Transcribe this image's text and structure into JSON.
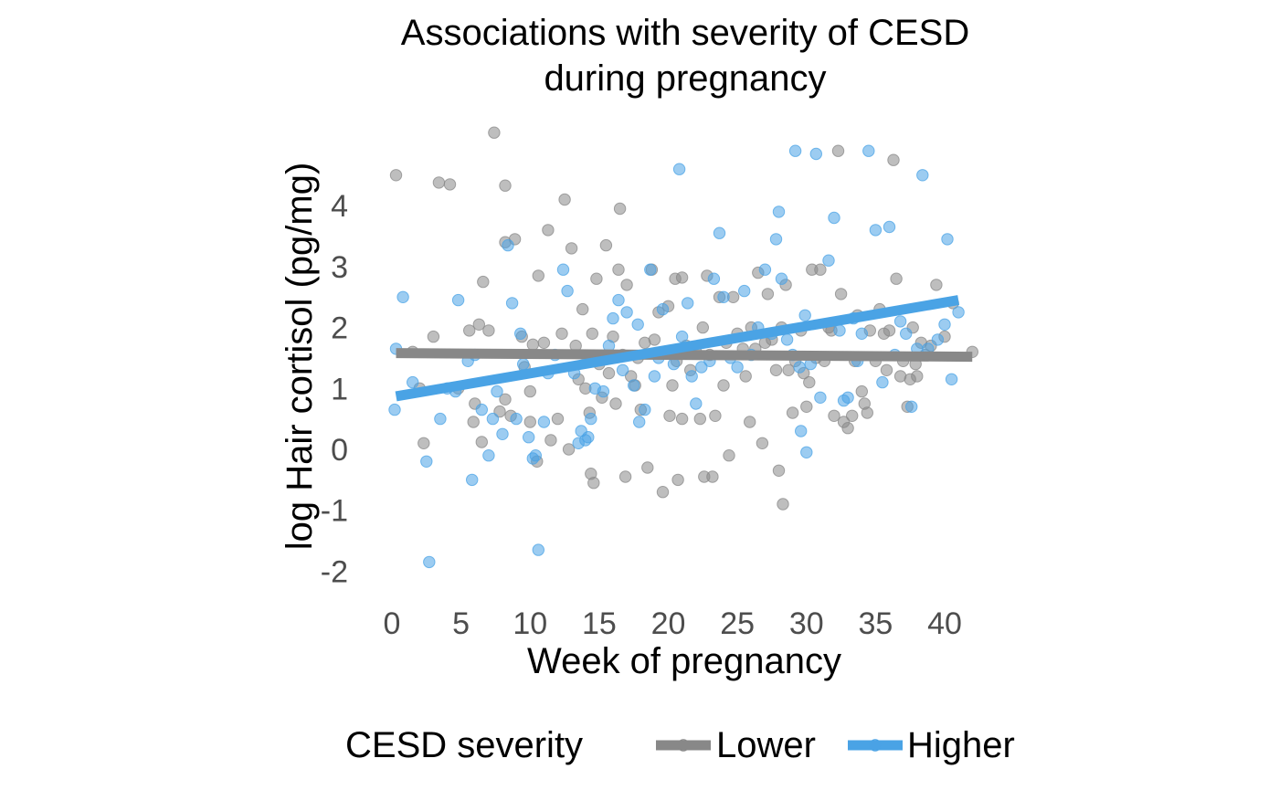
{
  "chart_data": {
    "type": "scatter",
    "title_lines": [
      "Associations with severity of CESD",
      "during pregnancy"
    ],
    "xlabel": "Week of pregnancy",
    "ylabel": "log Hair cortisol (pg/mg)",
    "xlim": [
      -0.5,
      42.5
    ],
    "ylim": [
      -2.3,
      5.3
    ],
    "x_ticks": [
      0,
      5,
      10,
      15,
      20,
      25,
      30,
      35,
      40
    ],
    "y_ticks": [
      -2,
      -1,
      0,
      1,
      2,
      3,
      4
    ],
    "grid": false,
    "legend": {
      "title": "CESD severity",
      "position": "bottom",
      "entries": [
        "Lower",
        "Higher"
      ]
    },
    "series": [
      {
        "name": "Lower",
        "color": "#888888",
        "trend": {
          "x": [
            0.3,
            42
          ],
          "y": [
            1.58,
            1.52
          ]
        },
        "points": [
          [
            0.3,
            4.5
          ],
          [
            1.5,
            1.6
          ],
          [
            2.0,
            1.0
          ],
          [
            2.3,
            0.1
          ],
          [
            3.0,
            1.85
          ],
          [
            3.4,
            4.38
          ],
          [
            4.2,
            4.35
          ],
          [
            4.8,
            1.0
          ],
          [
            5.6,
            1.95
          ],
          [
            5.9,
            0.45
          ],
          [
            6.0,
            0.75
          ],
          [
            6.3,
            2.05
          ],
          [
            6.5,
            0.12
          ],
          [
            6.6,
            2.75
          ],
          [
            7.0,
            1.95
          ],
          [
            7.4,
            5.2
          ],
          [
            7.8,
            0.62
          ],
          [
            8.2,
            4.33
          ],
          [
            8.2,
            3.4
          ],
          [
            8.2,
            0.82
          ],
          [
            8.6,
            0.55
          ],
          [
            8.9,
            3.45
          ],
          [
            9.4,
            1.85
          ],
          [
            9.6,
            1.35
          ],
          [
            10.0,
            0.95
          ],
          [
            10.0,
            0.45
          ],
          [
            10.2,
            1.72
          ],
          [
            10.6,
            2.85
          ],
          [
            10.5,
            -0.2
          ],
          [
            11.0,
            1.75
          ],
          [
            11.3,
            3.6
          ],
          [
            11.5,
            0.15
          ],
          [
            12.0,
            0.5
          ],
          [
            12.3,
            1.9
          ],
          [
            12.5,
            4.1
          ],
          [
            12.8,
            0.0
          ],
          [
            13.0,
            3.3
          ],
          [
            13.3,
            1.7
          ],
          [
            13.5,
            1.15
          ],
          [
            13.8,
            2.3
          ],
          [
            14.0,
            1.0
          ],
          [
            14.3,
            0.6
          ],
          [
            14.4,
            -0.4
          ],
          [
            14.5,
            1.9
          ],
          [
            14.6,
            -0.55
          ],
          [
            14.8,
            2.8
          ],
          [
            15.0,
            1.4
          ],
          [
            15.2,
            0.85
          ],
          [
            15.5,
            3.35
          ],
          [
            15.7,
            1.25
          ],
          [
            16.0,
            1.85
          ],
          [
            16.2,
            0.75
          ],
          [
            16.4,
            2.95
          ],
          [
            16.5,
            3.95
          ],
          [
            16.7,
            1.55
          ],
          [
            16.9,
            -0.45
          ],
          [
            17.0,
            2.7
          ],
          [
            17.3,
            1.2
          ],
          [
            17.6,
            1.05
          ],
          [
            17.8,
            1.5
          ],
          [
            18.0,
            0.65
          ],
          [
            18.3,
            1.75
          ],
          [
            18.5,
            -0.3
          ],
          [
            18.8,
            2.95
          ],
          [
            19.0,
            1.8
          ],
          [
            19.3,
            2.25
          ],
          [
            19.6,
            -0.7
          ],
          [
            20.0,
            2.35
          ],
          [
            20.1,
            0.55
          ],
          [
            20.3,
            1.05
          ],
          [
            20.5,
            2.8
          ],
          [
            20.6,
            1.45
          ],
          [
            20.7,
            -0.5
          ],
          [
            21.0,
            0.5
          ],
          [
            21.0,
            2.82
          ],
          [
            21.3,
            1.7
          ],
          [
            21.6,
            1.3
          ],
          [
            22.0,
            1.6
          ],
          [
            22.3,
            0.5
          ],
          [
            22.5,
            2.0
          ],
          [
            22.6,
            -0.45
          ],
          [
            22.8,
            2.85
          ],
          [
            23.0,
            1.55
          ],
          [
            23.2,
            -0.45
          ],
          [
            23.4,
            0.55
          ],
          [
            23.7,
            2.5
          ],
          [
            24.0,
            1.05
          ],
          [
            24.2,
            1.75
          ],
          [
            24.4,
            -0.1
          ],
          [
            24.7,
            2.5
          ],
          [
            25.0,
            1.9
          ],
          [
            25.4,
            1.65
          ],
          [
            25.6,
            1.2
          ],
          [
            25.9,
            0.45
          ],
          [
            26.0,
            2.0
          ],
          [
            26.3,
            1.65
          ],
          [
            26.5,
            2.9
          ],
          [
            26.8,
            0.1
          ],
          [
            27.0,
            1.75
          ],
          [
            27.2,
            2.55
          ],
          [
            27.5,
            1.8
          ],
          [
            27.8,
            1.3
          ],
          [
            28.0,
            -0.35
          ],
          [
            28.2,
            2.0
          ],
          [
            28.3,
            -0.9
          ],
          [
            28.5,
            2.7
          ],
          [
            28.7,
            1.3
          ],
          [
            29.0,
            0.6
          ],
          [
            29.2,
            1.45
          ],
          [
            29.6,
            1.95
          ],
          [
            29.8,
            1.25
          ],
          [
            30.0,
            0.7
          ],
          [
            30.2,
            1.1
          ],
          [
            30.4,
            2.95
          ],
          [
            30.7,
            1.5
          ],
          [
            31.0,
            2.95
          ],
          [
            31.3,
            1.45
          ],
          [
            31.6,
            2.0
          ],
          [
            31.8,
            1.95
          ],
          [
            32.0,
            0.55
          ],
          [
            32.3,
            4.9
          ],
          [
            32.5,
            2.55
          ],
          [
            32.7,
            0.45
          ],
          [
            33.0,
            0.35
          ],
          [
            33.3,
            0.55
          ],
          [
            33.5,
            1.45
          ],
          [
            33.7,
            2.2
          ],
          [
            34.0,
            0.95
          ],
          [
            34.2,
            0.75
          ],
          [
            34.4,
            0.6
          ],
          [
            34.6,
            1.95
          ],
          [
            35.0,
            1.45
          ],
          [
            35.3,
            2.3
          ],
          [
            35.6,
            1.9
          ],
          [
            35.8,
            1.3
          ],
          [
            36.0,
            1.95
          ],
          [
            36.3,
            4.75
          ],
          [
            36.5,
            2.8
          ],
          [
            36.8,
            1.2
          ],
          [
            37.0,
            1.45
          ],
          [
            37.3,
            0.7
          ],
          [
            37.5,
            1.15
          ],
          [
            37.7,
            2.0
          ],
          [
            37.9,
            1.4
          ],
          [
            38.0,
            1.2
          ],
          [
            38.3,
            1.75
          ],
          [
            38.6,
            1.55
          ],
          [
            39.0,
            1.7
          ],
          [
            39.4,
            2.7
          ],
          [
            40.0,
            1.85
          ],
          [
            40.6,
            2.4
          ],
          [
            42.0,
            1.6
          ]
        ]
      },
      {
        "name": "Higher",
        "color": "#4aa3e5",
        "trend": {
          "x": [
            0.3,
            41
          ],
          "y": [
            0.87,
            2.45
          ]
        },
        "points": [
          [
            0.2,
            0.65
          ],
          [
            0.3,
            1.65
          ],
          [
            0.8,
            2.5
          ],
          [
            1.5,
            1.1
          ],
          [
            2.5,
            -0.2
          ],
          [
            2.7,
            -1.85
          ],
          [
            3.5,
            0.5
          ],
          [
            4.0,
            1.0
          ],
          [
            4.6,
            0.95
          ],
          [
            4.8,
            2.45
          ],
          [
            5.5,
            1.45
          ],
          [
            5.8,
            -0.5
          ],
          [
            6.0,
            1.55
          ],
          [
            6.5,
            0.65
          ],
          [
            7.0,
            -0.1
          ],
          [
            7.3,
            0.5
          ],
          [
            7.6,
            0.95
          ],
          [
            8.0,
            0.25
          ],
          [
            8.4,
            3.35
          ],
          [
            8.7,
            2.4
          ],
          [
            9.0,
            0.5
          ],
          [
            9.3,
            1.9
          ],
          [
            9.5,
            1.4
          ],
          [
            9.9,
            0.2
          ],
          [
            10.2,
            -0.15
          ],
          [
            10.4,
            -0.1
          ],
          [
            10.6,
            -1.65
          ],
          [
            11.0,
            0.45
          ],
          [
            11.3,
            1.25
          ],
          [
            11.8,
            1.55
          ],
          [
            12.4,
            2.95
          ],
          [
            12.7,
            2.6
          ],
          [
            13.2,
            1.25
          ],
          [
            13.5,
            0.1
          ],
          [
            13.7,
            0.3
          ],
          [
            14.0,
            0.15
          ],
          [
            14.2,
            0.2
          ],
          [
            14.4,
            0.5
          ],
          [
            14.7,
            1.0
          ],
          [
            15.3,
            0.95
          ],
          [
            15.7,
            1.7
          ],
          [
            16.0,
            2.15
          ],
          [
            16.4,
            2.45
          ],
          [
            16.7,
            1.3
          ],
          [
            17.0,
            2.25
          ],
          [
            17.5,
            1.05
          ],
          [
            17.8,
            2.05
          ],
          [
            17.9,
            0.45
          ],
          [
            18.3,
            0.65
          ],
          [
            18.7,
            2.95
          ],
          [
            19.0,
            1.2
          ],
          [
            19.3,
            1.5
          ],
          [
            19.6,
            2.3
          ],
          [
            20.0,
            1.6
          ],
          [
            20.4,
            1.4
          ],
          [
            20.8,
            4.6
          ],
          [
            21.0,
            1.85
          ],
          [
            21.4,
            2.4
          ],
          [
            21.7,
            1.2
          ],
          [
            22.0,
            0.75
          ],
          [
            22.4,
            1.35
          ],
          [
            23.0,
            1.45
          ],
          [
            23.3,
            2.8
          ],
          [
            23.7,
            3.55
          ],
          [
            24.0,
            2.5
          ],
          [
            24.5,
            1.5
          ],
          [
            25.0,
            1.35
          ],
          [
            25.5,
            2.6
          ],
          [
            26.0,
            1.55
          ],
          [
            26.5,
            2.0
          ],
          [
            27.0,
            2.95
          ],
          [
            27.5,
            1.9
          ],
          [
            27.8,
            3.45
          ],
          [
            28.0,
            3.9
          ],
          [
            28.2,
            2.8
          ],
          [
            28.6,
            1.8
          ],
          [
            29.0,
            1.55
          ],
          [
            29.2,
            4.9
          ],
          [
            29.5,
            1.35
          ],
          [
            29.6,
            0.3
          ],
          [
            29.9,
            2.2
          ],
          [
            30.0,
            -0.05
          ],
          [
            30.3,
            1.4
          ],
          [
            30.7,
            4.85
          ],
          [
            31.0,
            0.85
          ],
          [
            31.6,
            3.1
          ],
          [
            32.0,
            3.8
          ],
          [
            32.4,
            1.95
          ],
          [
            32.7,
            0.8
          ],
          [
            33.0,
            0.85
          ],
          [
            33.4,
            2.15
          ],
          [
            33.7,
            1.45
          ],
          [
            34.0,
            1.9
          ],
          [
            34.5,
            4.9
          ],
          [
            35.0,
            3.6
          ],
          [
            35.5,
            1.1
          ],
          [
            36.0,
            3.65
          ],
          [
            36.4,
            1.55
          ],
          [
            36.8,
            2.1
          ],
          [
            37.2,
            1.9
          ],
          [
            37.6,
            0.7
          ],
          [
            38.0,
            1.65
          ],
          [
            38.4,
            4.5
          ],
          [
            38.8,
            1.65
          ],
          [
            39.5,
            1.8
          ],
          [
            40.0,
            2.05
          ],
          [
            40.2,
            3.45
          ],
          [
            40.5,
            1.15
          ],
          [
            41.0,
            2.25
          ]
        ]
      }
    ]
  }
}
